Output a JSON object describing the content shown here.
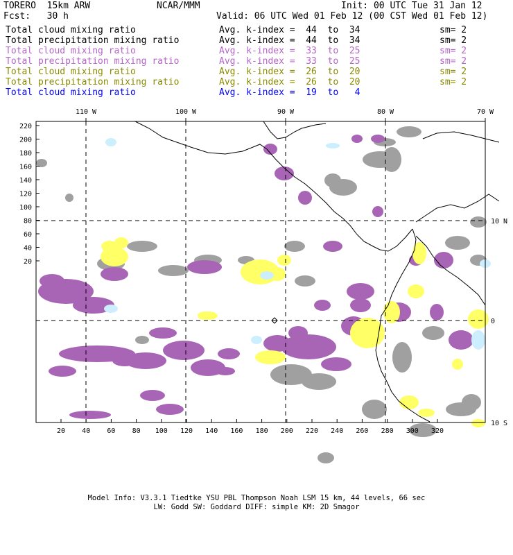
{
  "header": {
    "model": "TORERO  15km ARW",
    "org": "NCAR/MMM",
    "init": "Init: 00 UTC Tue 31 Jan 12",
    "fcst": "Fcst:   30 h",
    "valid": "Valid: 06 UTC Wed 01 Feb 12 (00 CST Wed 01 Feb 12)"
  },
  "legend": [
    {
      "field": "Total cloud mixing ratio",
      "kindex": "Avg. k-index =  44  to  34",
      "sm": "sm= 2",
      "color": "#000000"
    },
    {
      "field": "Total precipitation mixing ratio",
      "kindex": "Avg. k-index =  44  to  34",
      "sm": "sm= 2",
      "color": "#000000"
    },
    {
      "field": "Total cloud mixing ratio",
      "kindex": "Avg. k-index =  33  to  25",
      "sm": "sm= 2",
      "color": "#b565c9"
    },
    {
      "field": "Total precipitation mixing ratio",
      "kindex": "Avg. k-index =  33  to  25",
      "sm": "sm= 2",
      "color": "#b565c9"
    },
    {
      "field": "Total cloud mixing ratio",
      "kindex": "Avg. k-index =  26  to  20",
      "sm": "sm= 2",
      "color": "#8a8a00"
    },
    {
      "field": "Total precipitation mixing ratio",
      "kindex": "Avg. k-index =  26  to  20",
      "sm": "sm= 2",
      "color": "#8a8a00"
    },
    {
      "field": "Total cloud mixing ratio",
      "kindex": "Avg. k-index =  19  to   4",
      "sm": "",
      "color": "#0000ff"
    }
  ],
  "map": {
    "lon_labels": [
      "110 W",
      "100 W",
      "90 W",
      "80 W",
      "70 W"
    ],
    "lat_labels": [
      "10 N",
      "0",
      "10 S"
    ],
    "y_ticks": [
      "220",
      "200",
      "180",
      "160",
      "140",
      "120",
      "100",
      "80",
      "60",
      "40",
      "20"
    ],
    "x_ticks": [
      "20",
      "40",
      "60",
      "80",
      "100",
      "120",
      "140",
      "160",
      "180",
      "200",
      "220",
      "240",
      "260",
      "280",
      "300",
      "320"
    ],
    "colors": {
      "gray": "#a0a0a0",
      "purple": "#a865b5",
      "yellow": "#ffff66",
      "lightblue": "#cceeff"
    }
  },
  "footer": {
    "line1": "Model Info: V3.3.1   Tiedtke YSU PBL  Thompson    Noah LSM  15 km,   44 levels,   66 sec",
    "line2": "LW: Godd SW: Goddard DIFF: simple KM: 2D Smagor"
  }
}
